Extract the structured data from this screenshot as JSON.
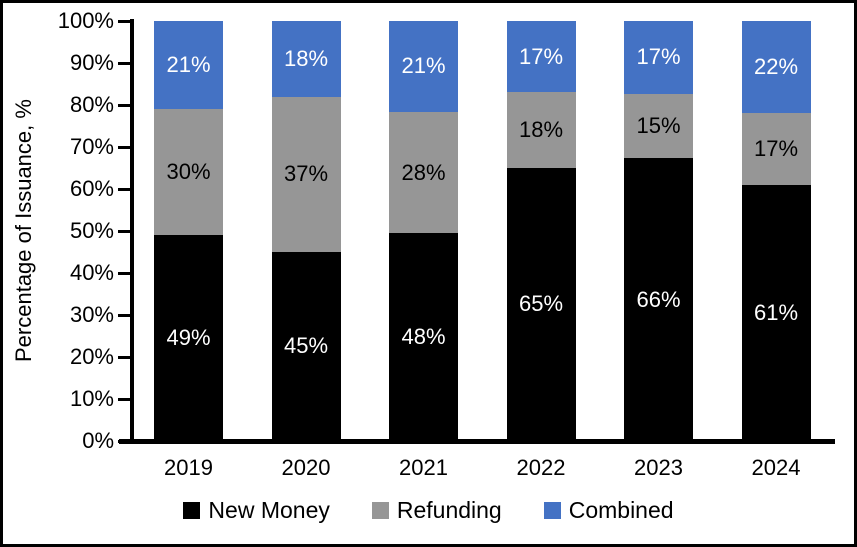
{
  "colors": {
    "background": "#FFFFFF",
    "border": "#000000",
    "axis": "#000000",
    "new_money": "#000000",
    "refunding": "#969696",
    "combined": "#4472C4"
  },
  "chart_data": {
    "type": "bar",
    "stacked": true,
    "percent_stacked": true,
    "title": "",
    "xlabel": "",
    "ylabel": "Percentage of Issuance, %",
    "ylim": [
      0,
      100
    ],
    "grid": false,
    "legend_position": "bottom",
    "y_ticks": [
      "0%",
      "10%",
      "20%",
      "30%",
      "40%",
      "50%",
      "60%",
      "70%",
      "80%",
      "90%",
      "100%"
    ],
    "categories": [
      "2019",
      "2020",
      "2021",
      "2022",
      "2023",
      "2024"
    ],
    "series": [
      {
        "name": "New Money",
        "color": "#000000",
        "label_color": "#FFFFFF",
        "values": [
          49,
          45,
          48,
          65,
          66,
          61
        ]
      },
      {
        "name": "Refunding",
        "color": "#969696",
        "label_color": "#000000",
        "values": [
          30,
          37,
          28,
          18,
          15,
          17
        ]
      },
      {
        "name": "Combined",
        "color": "#4472C4",
        "label_color": "#FFFFFF",
        "values": [
          21,
          18,
          21,
          17,
          17,
          22
        ]
      }
    ],
    "data_label_suffix": "%"
  }
}
